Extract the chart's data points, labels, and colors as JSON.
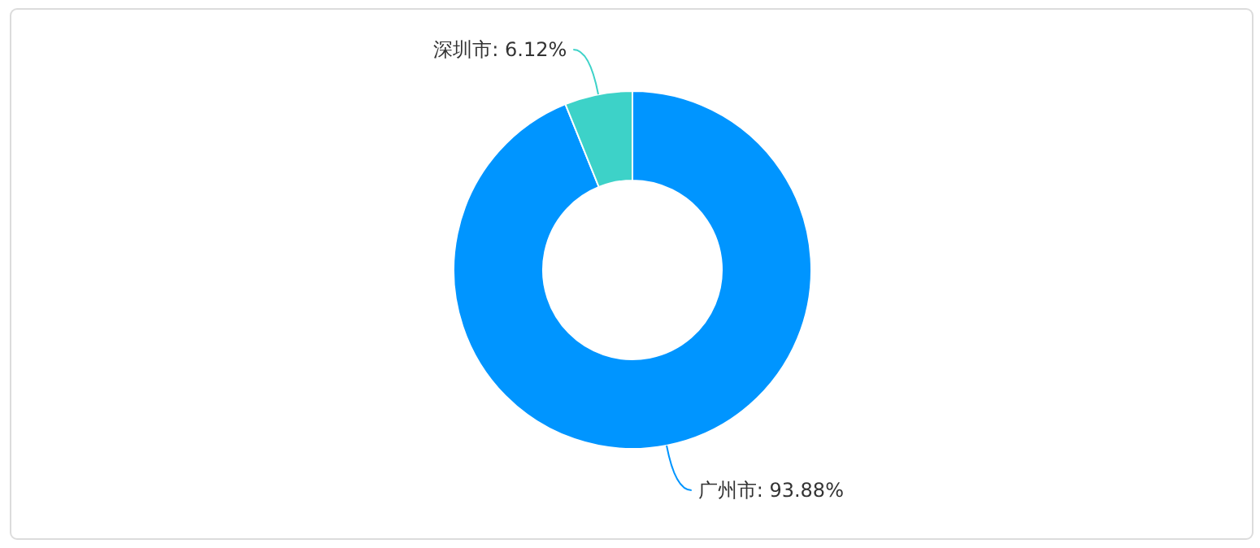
{
  "chart_data": {
    "type": "donut",
    "categories": [
      "广州市",
      "深圳市"
    ],
    "values": [
      93.88,
      6.12
    ],
    "colors": [
      "#0095ff",
      "#3dd2c8"
    ],
    "value_labels": [
      ": 93.88%",
      ": 6.12%"
    ]
  }
}
